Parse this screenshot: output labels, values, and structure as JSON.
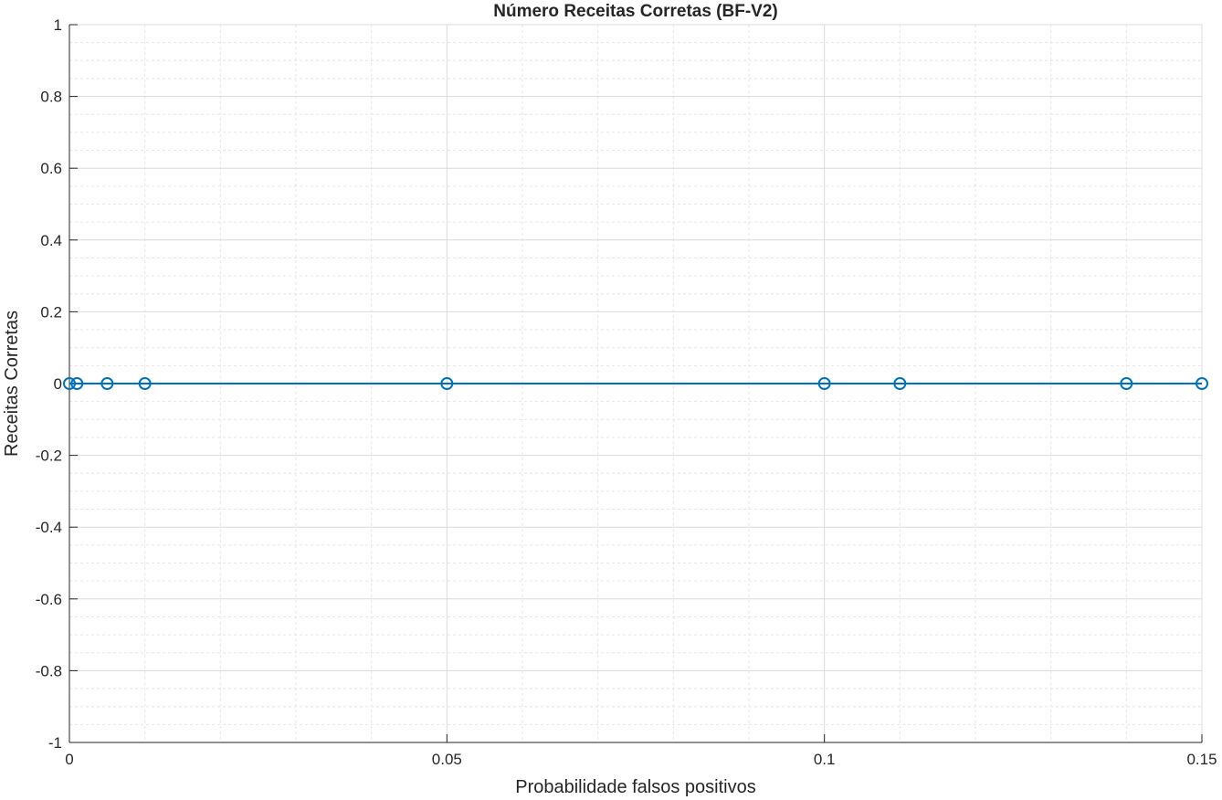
{
  "chart_data": {
    "type": "line",
    "title": "Número Receitas Corretas (BF-V2)",
    "xlabel": "Probabilidade falsos positivos",
    "ylabel": "Receitas Corretas",
    "xlim": [
      0,
      0.15
    ],
    "ylim": [
      -1,
      1
    ],
    "xticks": [
      0,
      0.05,
      0.1,
      0.15
    ],
    "xtick_labels": [
      "0",
      "0.05",
      "0.1",
      "0.15"
    ],
    "yticks": [
      -1,
      -0.8,
      -0.6,
      -0.4,
      -0.2,
      0,
      0.2,
      0.4,
      0.6,
      0.8,
      1
    ],
    "ytick_labels": [
      "-1",
      "-0.8",
      "-0.6",
      "-0.4",
      "-0.2",
      "0",
      "0.2",
      "0.4",
      "0.6",
      "0.8",
      "1"
    ],
    "grid": true,
    "minor_grid": true,
    "series": [
      {
        "x": [
          0,
          0.001,
          0.005,
          0.01,
          0.05,
          0.1,
          0.11,
          0.14,
          0.15
        ],
        "y": [
          0,
          0,
          0,
          0,
          0,
          0,
          0,
          0,
          0
        ],
        "color": "#0072BD",
        "marker": "circle"
      }
    ]
  }
}
